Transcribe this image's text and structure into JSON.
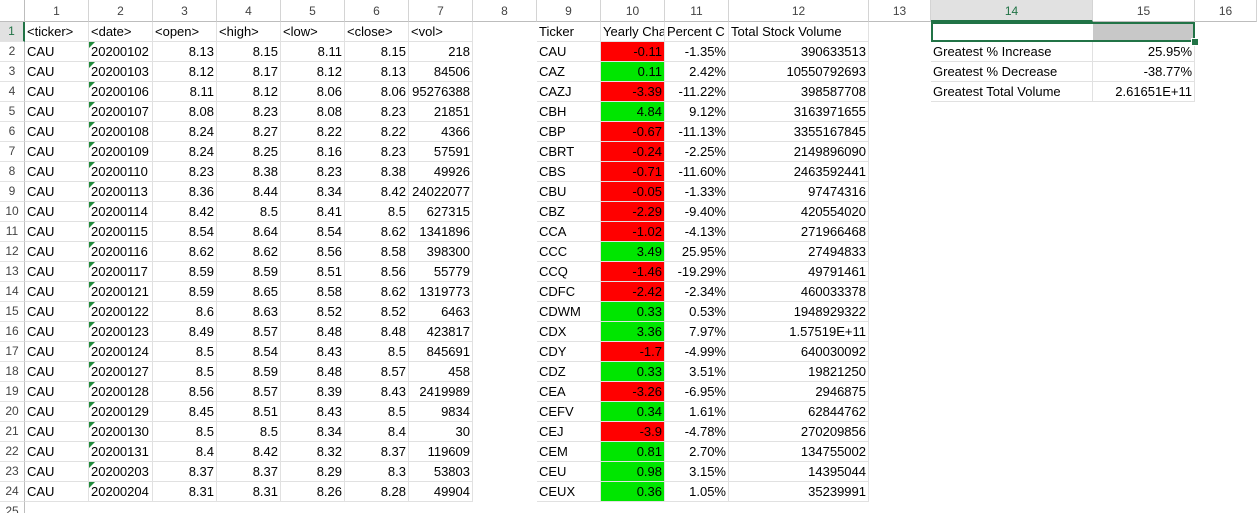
{
  "columns": [
    "1",
    "2",
    "3",
    "4",
    "5",
    "6",
    "7",
    "8",
    "9",
    "10",
    "11",
    "12",
    "13",
    "14",
    "15",
    "16"
  ],
  "active_column": "14",
  "active_row": 1,
  "colors": {
    "positive": "#00e600",
    "negative": "#ff0000",
    "selection": "#217346",
    "selected_fill": "#c8c8c8"
  },
  "headers": {
    "raw": [
      "<ticker>",
      "<date>",
      "<open>",
      "<high>",
      "<low>",
      "<close>",
      "<vol>"
    ],
    "summary": [
      "Ticker",
      "Yearly Cha",
      "Percent C",
      "Total Stock Volume"
    ]
  },
  "raw_rows": [
    [
      "CAU",
      "20200102",
      "8.13",
      "8.15",
      "8.11",
      "8.15",
      "218"
    ],
    [
      "CAU",
      "20200103",
      "8.12",
      "8.17",
      "8.12",
      "8.13",
      "84506"
    ],
    [
      "CAU",
      "20200106",
      "8.11",
      "8.12",
      "8.06",
      "8.06",
      "95276388"
    ],
    [
      "CAU",
      "20200107",
      "8.08",
      "8.23",
      "8.08",
      "8.23",
      "21851"
    ],
    [
      "CAU",
      "20200108",
      "8.24",
      "8.27",
      "8.22",
      "8.22",
      "4366"
    ],
    [
      "CAU",
      "20200109",
      "8.24",
      "8.25",
      "8.16",
      "8.23",
      "57591"
    ],
    [
      "CAU",
      "20200110",
      "8.23",
      "8.38",
      "8.23",
      "8.38",
      "49926"
    ],
    [
      "CAU",
      "20200113",
      "8.36",
      "8.44",
      "8.34",
      "8.42",
      "24022077"
    ],
    [
      "CAU",
      "20200114",
      "8.42",
      "8.5",
      "8.41",
      "8.5",
      "627315"
    ],
    [
      "CAU",
      "20200115",
      "8.54",
      "8.64",
      "8.54",
      "8.62",
      "1341896"
    ],
    [
      "CAU",
      "20200116",
      "8.62",
      "8.62",
      "8.56",
      "8.58",
      "398300"
    ],
    [
      "CAU",
      "20200117",
      "8.59",
      "8.59",
      "8.51",
      "8.56",
      "55779"
    ],
    [
      "CAU",
      "20200121",
      "8.59",
      "8.65",
      "8.58",
      "8.62",
      "1319773"
    ],
    [
      "CAU",
      "20200122",
      "8.6",
      "8.63",
      "8.52",
      "8.52",
      "6463"
    ],
    [
      "CAU",
      "20200123",
      "8.49",
      "8.57",
      "8.48",
      "8.48",
      "423817"
    ],
    [
      "CAU",
      "20200124",
      "8.5",
      "8.54",
      "8.43",
      "8.5",
      "845691"
    ],
    [
      "CAU",
      "20200127",
      "8.5",
      "8.59",
      "8.48",
      "8.57",
      "458"
    ],
    [
      "CAU",
      "20200128",
      "8.56",
      "8.57",
      "8.39",
      "8.43",
      "2419989"
    ],
    [
      "CAU",
      "20200129",
      "8.45",
      "8.51",
      "8.43",
      "8.5",
      "9834"
    ],
    [
      "CAU",
      "20200130",
      "8.5",
      "8.5",
      "8.34",
      "8.4",
      "30"
    ],
    [
      "CAU",
      "20200131",
      "8.4",
      "8.42",
      "8.32",
      "8.37",
      "119609"
    ],
    [
      "CAU",
      "20200203",
      "8.37",
      "8.37",
      "8.29",
      "8.3",
      "53803"
    ],
    [
      "CAU",
      "20200204",
      "8.31",
      "8.31",
      "8.26",
      "8.28",
      "49904"
    ]
  ],
  "summary_rows": [
    {
      "ticker": "CAU",
      "yearly": "-0.11",
      "sign": "neg",
      "pct": "-1.35%",
      "vol": "390633513"
    },
    {
      "ticker": "CAZ",
      "yearly": "0.11",
      "sign": "pos",
      "pct": "2.42%",
      "vol": "10550792693"
    },
    {
      "ticker": "CAZJ",
      "yearly": "-3.39",
      "sign": "neg",
      "pct": "-11.22%",
      "vol": "398587708"
    },
    {
      "ticker": "CBH",
      "yearly": "4.84",
      "sign": "pos",
      "pct": "9.12%",
      "vol": "3163971655"
    },
    {
      "ticker": "CBP",
      "yearly": "-0.67",
      "sign": "neg",
      "pct": "-11.13%",
      "vol": "3355167845"
    },
    {
      "ticker": "CBRT",
      "yearly": "-0.24",
      "sign": "neg",
      "pct": "-2.25%",
      "vol": "2149896090"
    },
    {
      "ticker": "CBS",
      "yearly": "-0.71",
      "sign": "neg",
      "pct": "-11.60%",
      "vol": "2463592441"
    },
    {
      "ticker": "CBU",
      "yearly": "-0.05",
      "sign": "neg",
      "pct": "-1.33%",
      "vol": "97474316"
    },
    {
      "ticker": "CBZ",
      "yearly": "-2.29",
      "sign": "neg",
      "pct": "-9.40%",
      "vol": "420554020"
    },
    {
      "ticker": "CCA",
      "yearly": "-1.02",
      "sign": "neg",
      "pct": "-4.13%",
      "vol": "271966468"
    },
    {
      "ticker": "CCC",
      "yearly": "3.49",
      "sign": "pos",
      "pct": "25.95%",
      "vol": "27494833"
    },
    {
      "ticker": "CCQ",
      "yearly": "-1.46",
      "sign": "neg",
      "pct": "-19.29%",
      "vol": "49791461"
    },
    {
      "ticker": "CDFC",
      "yearly": "-2.42",
      "sign": "neg",
      "pct": "-2.34%",
      "vol": "460033378"
    },
    {
      "ticker": "CDWM",
      "yearly": "0.33",
      "sign": "pos",
      "pct": "0.53%",
      "vol": "1948929322"
    },
    {
      "ticker": "CDX",
      "yearly": "3.36",
      "sign": "pos",
      "pct": "7.97%",
      "vol": "1.57519E+11"
    },
    {
      "ticker": "CDY",
      "yearly": "-1.7",
      "sign": "neg",
      "pct": "-4.99%",
      "vol": "640030092"
    },
    {
      "ticker": "CDZ",
      "yearly": "0.33",
      "sign": "pos",
      "pct": "3.51%",
      "vol": "19821250"
    },
    {
      "ticker": "CEA",
      "yearly": "-3.26",
      "sign": "neg",
      "pct": "-6.95%",
      "vol": "2946875"
    },
    {
      "ticker": "CEFV",
      "yearly": "0.34",
      "sign": "pos",
      "pct": "1.61%",
      "vol": "62844762"
    },
    {
      "ticker": "CEJ",
      "yearly": "-3.9",
      "sign": "neg",
      "pct": "-4.78%",
      "vol": "270209856"
    },
    {
      "ticker": "CEM",
      "yearly": "0.81",
      "sign": "pos",
      "pct": "2.70%",
      "vol": "134755002"
    },
    {
      "ticker": "CEU",
      "yearly": "0.98",
      "sign": "pos",
      "pct": "3.15%",
      "vol": "14395044"
    },
    {
      "ticker": "CEUX",
      "yearly": "0.36",
      "sign": "pos",
      "pct": "1.05%",
      "vol": "35239991"
    }
  ],
  "greatest": [
    {
      "label": "Greatest % Increase",
      "value": "25.95%"
    },
    {
      "label": "Greatest % Decrease",
      "value": "-38.77%"
    },
    {
      "label": "Greatest Total Volume",
      "value": "2.61651E+11"
    }
  ]
}
